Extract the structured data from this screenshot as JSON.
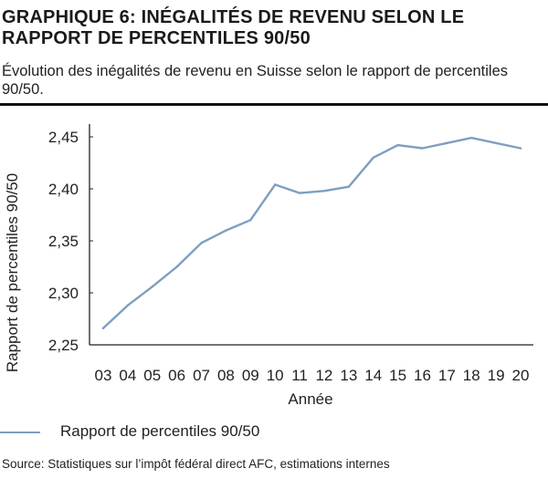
{
  "header": {
    "title": "GRAPHIQUE 6: INÉGALITÉS DE REVENU SELON LE RAPPORT DE PERCENTILES 90/50",
    "subtitle": "Évolution des inégalités de revenu en Suisse selon le rapport de percentiles 90/50."
  },
  "legend": {
    "label": "Rapport de percentiles 90/50"
  },
  "footer": {
    "source": "Source: Statistiques sur l’impôt fédéral direct AFC, estimations internes"
  },
  "colors": {
    "series": "#7d9fc0",
    "axis": "#222222",
    "grid": "#f2f2f2"
  },
  "chart_data": {
    "type": "line",
    "title": "GRAPHIQUE 6: INÉGALITÉS DE REVENU SELON LE RAPPORT DE PERCENTILES 90/50",
    "xlabel": "Année",
    "ylabel": "Rapport de percentiles 90/50",
    "categories": [
      "03",
      "04",
      "05",
      "06",
      "07",
      "08",
      "09",
      "10",
      "11",
      "12",
      "13",
      "14",
      "15",
      "16",
      "17",
      "18",
      "19",
      "20"
    ],
    "y_ticks": [
      "2,25",
      "2,30",
      "2,35",
      "2,40",
      "2,45"
    ],
    "ylim": [
      2.25,
      2.45
    ],
    "grid": false,
    "legend_position": "bottom-left",
    "series": [
      {
        "name": "Rapport de percentiles 90/50",
        "values": [
          2.266,
          2.288,
          2.306,
          2.325,
          2.348,
          2.36,
          2.37,
          2.404,
          2.396,
          2.398,
          2.402,
          2.43,
          2.442,
          2.439,
          2.444,
          2.449,
          2.444,
          2.439
        ]
      }
    ]
  }
}
